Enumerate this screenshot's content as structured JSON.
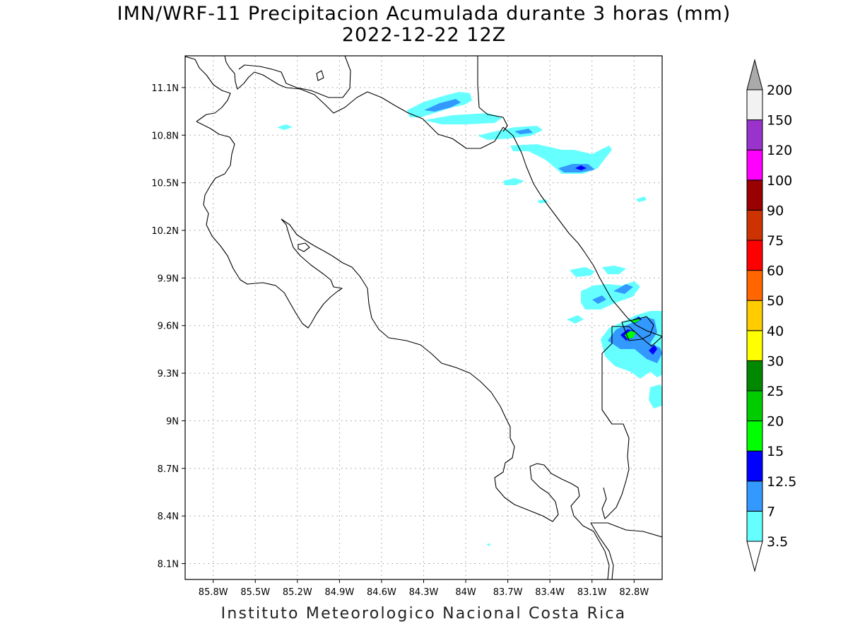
{
  "title_line1": "IMN/WRF-11 Precipitacion Acumulada durante 3 horas (mm)",
  "title_line2": "2022-12-22 12Z",
  "credit": "Instituto Meteorologico Nacional Costa Rica",
  "map": {
    "lon_range": [
      -86.0,
      -82.6
    ],
    "lat_range": [
      8.0,
      11.3
    ],
    "lat_ticks": [
      {
        "value": 11.1,
        "label": "11.1N"
      },
      {
        "value": 10.8,
        "label": "10.8N"
      },
      {
        "value": 10.5,
        "label": "10.5N"
      },
      {
        "value": 10.2,
        "label": "10.2N"
      },
      {
        "value": 9.9,
        "label": "9.9N"
      },
      {
        "value": 9.6,
        "label": "9.6N"
      },
      {
        "value": 9.3,
        "label": "9.3N"
      },
      {
        "value": 9.0,
        "label": "9N"
      },
      {
        "value": 8.7,
        "label": "8.7N"
      },
      {
        "value": 8.4,
        "label": "8.4N"
      },
      {
        "value": 8.1,
        "label": "8.1N"
      }
    ],
    "lon_ticks": [
      {
        "value": -85.8,
        "label": "85.8W"
      },
      {
        "value": -85.5,
        "label": "85.5W"
      },
      {
        "value": -85.2,
        "label": "85.2W"
      },
      {
        "value": -84.9,
        "label": "84.9W"
      },
      {
        "value": -84.6,
        "label": "84.6W"
      },
      {
        "value": -84.3,
        "label": "84.3W"
      },
      {
        "value": -84.0,
        "label": "84W"
      },
      {
        "value": -83.7,
        "label": "83.7W"
      },
      {
        "value": -83.4,
        "label": "83.4W"
      },
      {
        "value": -83.1,
        "label": "83.1W"
      },
      {
        "value": -82.8,
        "label": "82.8W"
      }
    ]
  },
  "colorbar": [
    {
      "label": "3.5",
      "color": "#66ffff"
    },
    {
      "label": "7",
      "color": "#3399ff"
    },
    {
      "label": "12.5",
      "color": "#0000ff"
    },
    {
      "label": "15",
      "color": "#00ff00"
    },
    {
      "label": "20",
      "color": "#00cc00"
    },
    {
      "label": "25",
      "color": "#008800"
    },
    {
      "label": "30",
      "color": "#ffff00"
    },
    {
      "label": "40",
      "color": "#ffcc00"
    },
    {
      "label": "50",
      "color": "#ff6600"
    },
    {
      "label": "60",
      "color": "#ff0000"
    },
    {
      "label": "75",
      "color": "#cc3300"
    },
    {
      "label": "90",
      "color": "#990000"
    },
    {
      "label": "100",
      "color": "#ff00ff"
    },
    {
      "label": "120",
      "color": "#9933cc"
    },
    {
      "label": "150",
      "color": "#f2f2f2"
    },
    {
      "label": "200",
      "color": "#aaaaaa"
    }
  ]
}
